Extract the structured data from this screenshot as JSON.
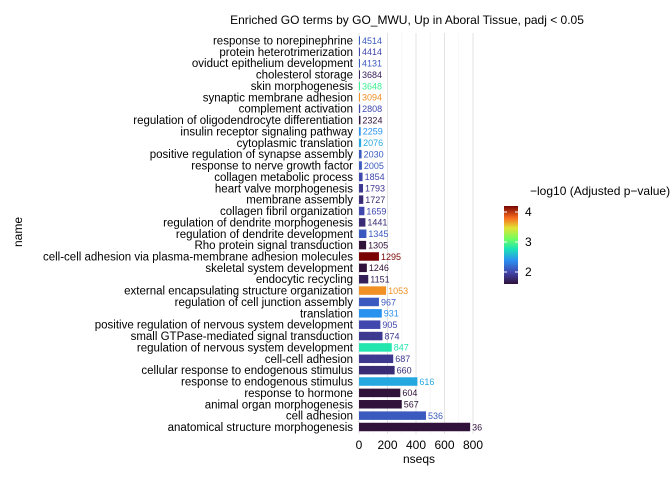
{
  "chart_data": {
    "type": "bar",
    "orientation": "horizontal",
    "title": "Enriched GO terms by GO_MWU, Up in Aboral Tissue, padj < 0.05",
    "xlabel": "nseqs",
    "ylabel": "name",
    "xlim": [
      0,
      800
    ],
    "xticks": [
      0,
      200,
      400,
      600,
      800
    ],
    "grid": "vertical major lines",
    "legend": {
      "title": "−log10 (Adjusted p−value)",
      "placement": "right",
      "min": 1.6,
      "max": 4.2,
      "ticks": [
        2,
        3,
        4
      ],
      "colormap": "turbo"
    },
    "categories": [
      "response to norepinephrine",
      "protein heterotrimerization",
      "oviduct epithelium development",
      "cholesterol storage",
      "skin morphogenesis",
      "synaptic membrane adhesion",
      "complement activation",
      "regulation of oligodendrocyte differentiation",
      "insulin receptor signaling pathway",
      "cytoplasmic translation",
      "positive regulation of synapse assembly",
      "response to nerve growth factor",
      "collagen metabolic process",
      "heart valve morphogenesis",
      "membrane assembly",
      "collagen fibril organization",
      "regulation of dendrite morphogenesis",
      "regulation of dendrite development",
      "Rho protein signal transduction",
      "cell-cell adhesion via plasma-membrane adhesion molecules",
      "skeletal system development",
      "endocytic recycling",
      "external encapsulating structure organization",
      "regulation of cell junction assembly",
      "translation",
      "positive regulation of nervous system development",
      "small GTPase-mediated signal transduction",
      "regulation of nervous system development",
      "cell-cell adhesion",
      "cellular response to endogenous stimulus",
      "response to endogenous stimulus",
      "response to hormone",
      "animal organ morphogenesis",
      "cell adhesion",
      "anatomical structure morphogenesis"
    ],
    "values": [
      6,
      6,
      6,
      6,
      7,
      7,
      8,
      10,
      12,
      15,
      18,
      20,
      25,
      28,
      30,
      38,
      45,
      52,
      50,
      140,
      55,
      65,
      190,
      140,
      160,
      150,
      165,
      230,
      240,
      250,
      410,
      290,
      300,
      470,
      780
    ],
    "labels": [
      "4514",
      "4414",
      "4131",
      "3684",
      "3648",
      "3094",
      "2808",
      "2324",
      "2259",
      "2076",
      "2030",
      "2005",
      "1854",
      "1793",
      "1727",
      "1659",
      "1441",
      "1345",
      "1305",
      "1295",
      "1246",
      "1151",
      "1053",
      "967",
      "931",
      "905",
      "874",
      "847",
      "687",
      "660",
      "616",
      "604",
      "567",
      "536",
      "36"
    ],
    "neglog10_padj": [
      2.1,
      2.0,
      2.1,
      1.7,
      2.9,
      3.7,
      2.0,
      1.6,
      2.4,
      2.5,
      2.1,
      2.1,
      2.0,
      1.9,
      1.8,
      2.0,
      1.8,
      2.1,
      1.6,
      4.2,
      1.6,
      1.7,
      3.7,
      2.1,
      2.4,
      2.0,
      1.9,
      2.8,
      1.9,
      1.8,
      2.5,
      1.6,
      1.6,
      2.1,
      1.6
    ]
  }
}
